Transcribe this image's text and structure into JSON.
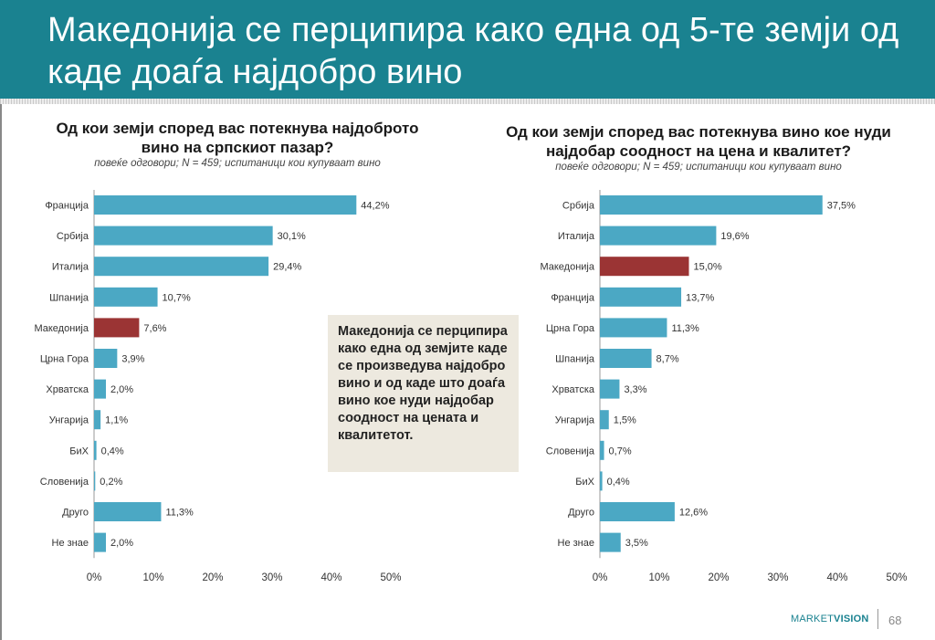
{
  "page": {
    "title": "Македонија се перципира како една од 5-те земји од каде доаѓа најдобро вино",
    "callout": "Македонија се перципира како една од земјите каде се произведува најдобро вино и од каде што доаѓа вино кое нуди најдобар соодност на цената и квалитетот.",
    "logo_left": "MARKET",
    "logo_right": "VISION",
    "page_number": "68"
  },
  "colors": {
    "header": "#1a8290",
    "bar": "#4ba8c4",
    "highlight": "#9b3434",
    "callout_bg": "#ede9df"
  },
  "chart_data": [
    {
      "type": "bar",
      "orientation": "horizontal",
      "title": "Од кои земји според вас потекнува најдоброто вино на српскиот пазар?",
      "subtitle": "повеќе одговори; N = 459; испитаници кои купуваат вино",
      "categories": [
        "Франција",
        "Србија",
        "Италија",
        "Шпанија",
        "Македонија",
        "Црна Гора",
        "Хрватска",
        "Унгарија",
        "БиХ",
        "Словенија",
        "Друго",
        "Не знае"
      ],
      "values": [
        44.2,
        30.1,
        29.4,
        10.7,
        7.6,
        3.9,
        2.0,
        1.1,
        0.4,
        0.2,
        11.3,
        2.0
      ],
      "value_labels": [
        "44,2%",
        "30,1%",
        "29,4%",
        "10,7%",
        "7,6%",
        "3,9%",
        "2,0%",
        "1,1%",
        "0,4%",
        "0,2%",
        "11,3%",
        "2,0%"
      ],
      "highlight": "Македонија",
      "xlim": [
        0,
        50
      ],
      "ticks": [
        0,
        10,
        20,
        30,
        40,
        50
      ],
      "tick_labels": [
        "0%",
        "10%",
        "20%",
        "30%",
        "40%",
        "50%"
      ],
      "grid": false
    },
    {
      "type": "bar",
      "orientation": "horizontal",
      "title": "Од кои земји според вас потекнува вино кое нуди најдобар соодност на цена и квалитет?",
      "subtitle": "повеќе одговори; N = 459; испитаници кои купуваат вино",
      "categories": [
        "Србија",
        "Италија",
        "Македонија",
        "Франција",
        "Црна Гора",
        "Шпанија",
        "Хрватска",
        "Унгарија",
        "Словенија",
        "БиХ",
        "Друго",
        "Не знае"
      ],
      "values": [
        37.5,
        19.6,
        15.0,
        13.7,
        11.3,
        8.7,
        3.3,
        1.5,
        0.7,
        0.4,
        12.6,
        3.5
      ],
      "value_labels": [
        "37,5%",
        "19,6%",
        "15,0%",
        "13,7%",
        "11,3%",
        "8,7%",
        "3,3%",
        "1,5%",
        "0,7%",
        "0,4%",
        "12,6%",
        "3,5%"
      ],
      "highlight": "Македонија",
      "xlim": [
        0,
        50
      ],
      "ticks": [
        0,
        10,
        20,
        30,
        40,
        50
      ],
      "tick_labels": [
        "0%",
        "10%",
        "20%",
        "30%",
        "40%",
        "50%"
      ],
      "grid": false
    }
  ]
}
